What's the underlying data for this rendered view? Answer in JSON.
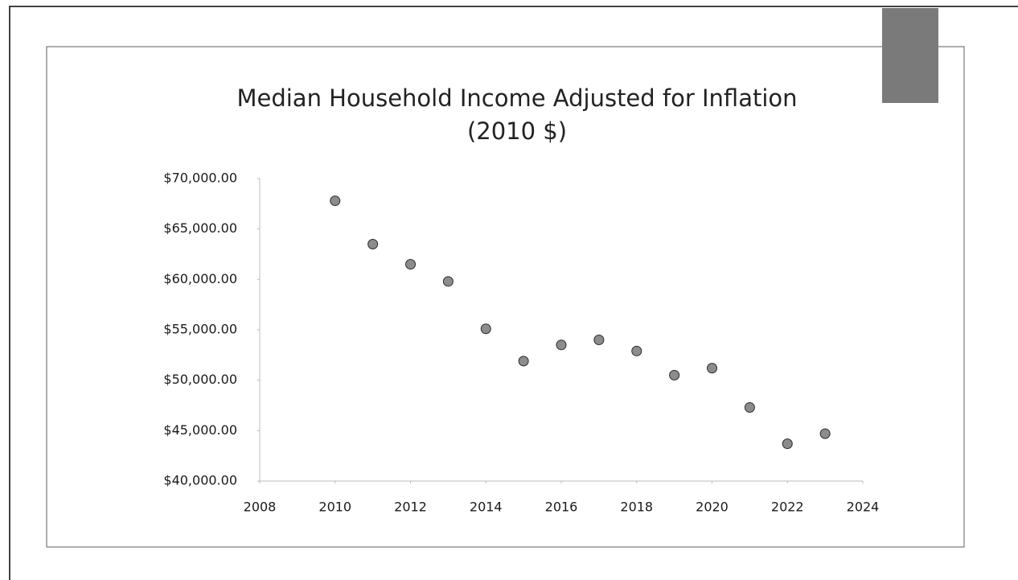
{
  "chart_data": {
    "type": "line",
    "title": [
      "Median Household Income Adjusted for Inflation",
      "(2010 $)"
    ],
    "x": [
      2010,
      2011,
      2012,
      2013,
      2014,
      2015,
      2016,
      2017,
      2018,
      2019,
      2020,
      2021,
      2022,
      2023
    ],
    "values": [
      67800,
      63500,
      61500,
      59800,
      55100,
      51900,
      53500,
      54000,
      52900,
      50500,
      51200,
      47300,
      43700,
      44700
    ],
    "color": "#2b2b2b",
    "marker_color": "#8c8c8c",
    "xlim": [
      2008,
      2024
    ],
    "xticks": [
      2008,
      2010,
      2012,
      2014,
      2016,
      2018,
      2020,
      2022,
      2024
    ],
    "ylim": [
      40000,
      70000
    ],
    "yticks": [
      {
        "value": 40000,
        "label": "$40,000.00"
      },
      {
        "value": 45000,
        "label": "$45,000.00"
      },
      {
        "value": 50000,
        "label": "$50,000.00"
      },
      {
        "value": 55000,
        "label": "$55,000.00"
      },
      {
        "value": 60000,
        "label": "$60,000.00"
      },
      {
        "value": 65000,
        "label": "$65,000.00"
      },
      {
        "value": 70000,
        "label": "$70,000.00"
      }
    ],
    "grid": false
  }
}
